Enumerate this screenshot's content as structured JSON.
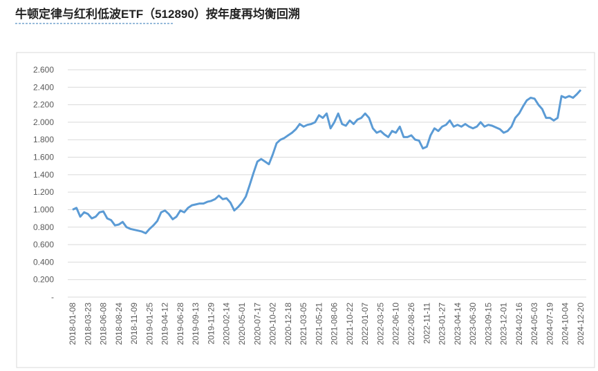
{
  "chart_data": {
    "type": "line",
    "title": "牛顿定律与红利低波ETF（512890）按年度再均衡回溯",
    "categories": [
      "2018-01-08",
      null,
      null,
      null,
      "2018-03-23",
      null,
      null,
      null,
      "2018-06-08",
      null,
      null,
      null,
      "2018-08-24",
      null,
      null,
      null,
      "2018-11-09",
      null,
      null,
      null,
      "2019-01-25",
      null,
      null,
      null,
      "2019-04-12",
      null,
      null,
      null,
      "2019-06-28",
      null,
      null,
      null,
      "2019-09-13",
      null,
      null,
      null,
      "2019-11-29",
      null,
      null,
      null,
      "2020-02-14",
      null,
      null,
      null,
      "2020-05-01",
      null,
      null,
      null,
      "2020-07-17",
      null,
      null,
      null,
      "2020-10-02",
      null,
      null,
      null,
      "2020-12-18",
      null,
      null,
      null,
      "2021-03-05",
      null,
      null,
      null,
      "2021-05-21",
      null,
      null,
      null,
      "2021-08-06",
      null,
      null,
      null,
      "2021-10-22",
      null,
      null,
      null,
      "2022-01-07",
      null,
      null,
      null,
      "2022-03-25",
      null,
      null,
      null,
      "2022-06-10",
      null,
      null,
      null,
      "2022-08-26",
      null,
      null,
      null,
      "2022-11-11",
      null,
      null,
      null,
      "2023-01-27",
      null,
      null,
      null,
      "2023-04-14",
      null,
      null,
      null,
      "2023-06-30",
      null,
      null,
      null,
      "2023-09-15",
      null,
      null,
      null,
      "2023-12-01",
      null,
      null,
      null,
      "2024-02-16",
      null,
      null,
      null,
      "2024-05-03",
      null,
      null,
      null,
      "2024-07-19",
      null,
      null,
      null,
      "2024-10-04",
      null,
      null,
      null,
      "2024-12-20"
    ],
    "series": [
      {
        "name": null,
        "color": "#5b9bd5",
        "values": [
          1.0,
          1.02,
          0.92,
          0.97,
          0.95,
          0.9,
          0.92,
          0.97,
          0.98,
          0.9,
          0.88,
          0.82,
          0.83,
          0.86,
          0.8,
          0.78,
          0.77,
          0.76,
          0.75,
          0.73,
          0.78,
          0.82,
          0.87,
          0.97,
          0.99,
          0.95,
          0.89,
          0.92,
          0.99,
          0.97,
          1.02,
          1.05,
          1.06,
          1.07,
          1.07,
          1.09,
          1.1,
          1.12,
          1.16,
          1.12,
          1.13,
          1.08,
          0.99,
          1.03,
          1.08,
          1.15,
          1.28,
          1.42,
          1.55,
          1.58,
          1.55,
          1.52,
          1.63,
          1.76,
          1.8,
          1.82,
          1.85,
          1.88,
          1.92,
          1.98,
          1.95,
          1.97,
          1.98,
          2.0,
          2.08,
          2.05,
          2.1,
          1.93,
          2.0,
          2.1,
          1.98,
          1.96,
          2.02,
          1.98,
          2.03,
          2.05,
          2.1,
          2.05,
          1.93,
          1.88,
          1.9,
          1.86,
          1.83,
          1.9,
          1.88,
          1.95,
          1.83,
          1.83,
          1.85,
          1.8,
          1.79,
          1.7,
          1.72,
          1.85,
          1.93,
          1.9,
          1.95,
          1.97,
          2.02,
          1.95,
          1.97,
          1.95,
          1.98,
          1.95,
          1.93,
          1.95,
          2.0,
          1.95,
          1.97,
          1.96,
          1.94,
          1.92,
          1.88,
          1.9,
          1.95,
          2.05,
          2.1,
          2.18,
          2.25,
          2.28,
          2.27,
          2.2,
          2.15,
          2.05,
          2.05,
          2.02,
          2.05,
          2.3,
          2.28,
          2.3,
          2.28,
          2.32,
          2.37
        ]
      }
    ],
    "ylim": [
      0,
      2.6
    ],
    "yticks": [
      {
        "value": 0,
        "label": "-"
      },
      {
        "value": 0.2,
        "label": "0.200"
      },
      {
        "value": 0.4,
        "label": "0.400"
      },
      {
        "value": 0.6,
        "label": "0.600"
      },
      {
        "value": 0.8,
        "label": "0.800"
      },
      {
        "value": 1,
        "label": "1.000"
      },
      {
        "value": 1.2,
        "label": "1.200"
      },
      {
        "value": 1.4,
        "label": "1.400"
      },
      {
        "value": 1.6,
        "label": "1.600"
      },
      {
        "value": 1.8,
        "label": "1.800"
      },
      {
        "value": 2,
        "label": "2.000"
      },
      {
        "value": 2.2,
        "label": "2.200"
      },
      {
        "value": 2.4,
        "label": "2.400"
      },
      {
        "value": 2.6,
        "label": "2.600"
      }
    ],
    "grid": true
  }
}
